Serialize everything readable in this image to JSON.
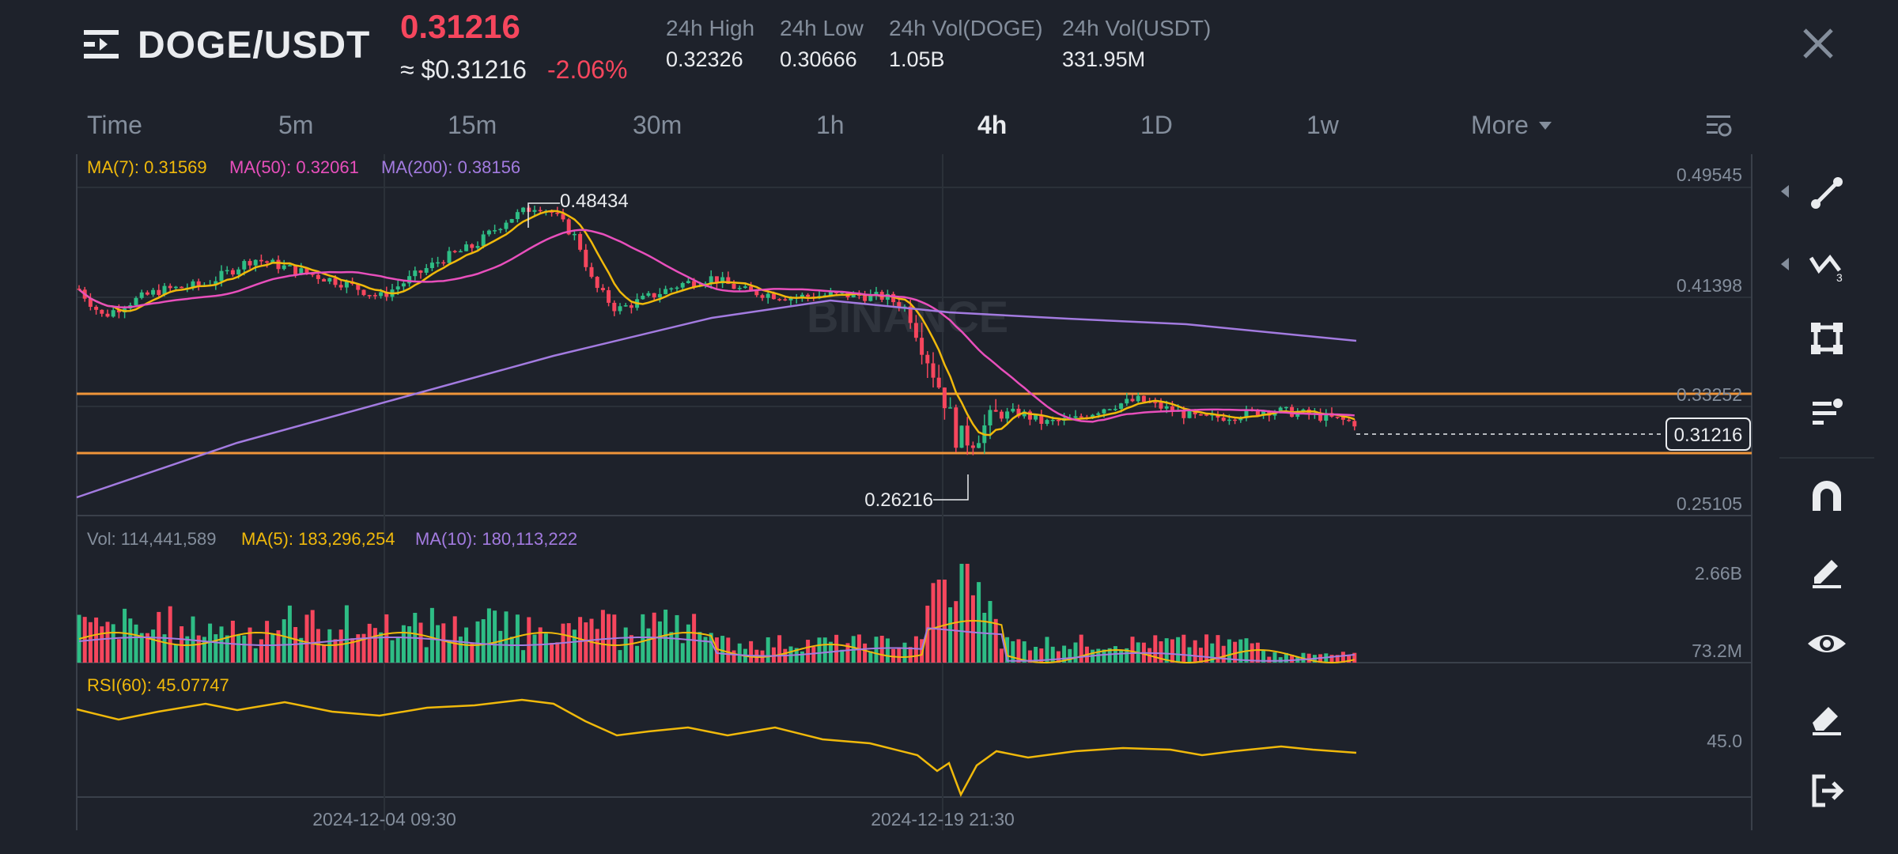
{
  "header": {
    "pair": "DOGE/USDT",
    "last_price": "0.31216",
    "usd_price": "≈ $0.31216",
    "change": "-2.06%",
    "stats": [
      {
        "label": "24h High",
        "value": "0.32326"
      },
      {
        "label": "24h Low",
        "value": "0.30666"
      },
      {
        "label": "24h Vol(DOGE)",
        "value": "1.05B"
      },
      {
        "label": "24h Vol(USDT)",
        "value": "331.95M"
      }
    ]
  },
  "timeframes": {
    "items": [
      "Time",
      "5m",
      "15m",
      "30m",
      "1h",
      "4h",
      "1D",
      "1w",
      "More"
    ],
    "active": "4h"
  },
  "chart": {
    "ma_legend": [
      {
        "label": "MA(7): 0.31569",
        "color": "#f0b90b"
      },
      {
        "label": "MA(50): 0.32061",
        "color": "#e84fbc"
      },
      {
        "label": "MA(200): 0.38156",
        "color": "#a37be0"
      }
    ],
    "price_axis": [
      "0.49545",
      "0.41398",
      "0.33252",
      "0.25105"
    ],
    "current_price_tag": "0.31216",
    "high_marker": "0.48434",
    "low_marker": "0.26216",
    "watermark": "BINANCE",
    "vol_legend": [
      {
        "label": "Vol: 114,441,589",
        "color": "#848e9c"
      },
      {
        "label": "MA(5): 183,296,254",
        "color": "#f0b90b"
      },
      {
        "label": "MA(10): 180,113,222",
        "color": "#a37be0"
      }
    ],
    "vol_axis": [
      "2.66B",
      "73.2M"
    ],
    "rsi_legend": "RSI(60): 45.07747",
    "rsi_axis": "45.0",
    "time_axis": [
      "2024-12-04 09:30",
      "2024-12-19 21:30"
    ],
    "colors": {
      "up": "#2ebd85",
      "down": "#f6465d",
      "ma7": "#f0b90b",
      "ma50": "#e84fbc",
      "ma200": "#a37be0",
      "hline": "#f0953a"
    }
  },
  "toolbar": {
    "tools": [
      "trend-line-icon",
      "fib-icon",
      "rectangle-icon",
      "position-icon",
      "magnet-icon",
      "pencil-icon",
      "eye-icon",
      "eraser-icon",
      "exit-icon"
    ]
  }
}
